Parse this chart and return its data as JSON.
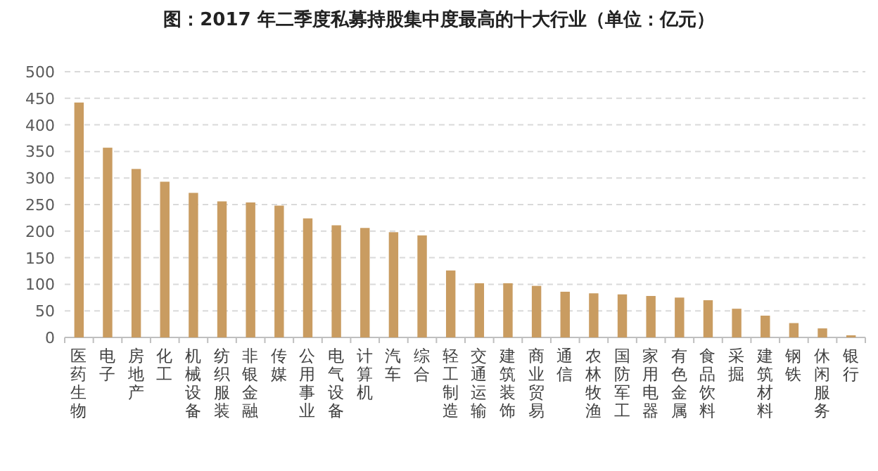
{
  "chart_data": {
    "type": "bar",
    "title": "图：2017 年二季度私募持股集中度最高的十大行业（单位：亿元）",
    "categories": [
      "医药生物",
      "电子",
      "房地产",
      "化工",
      "机械设备",
      "纺织服装",
      "非银金融",
      "传媒",
      "公用事业",
      "电气设备",
      "计算机",
      "汽车",
      "综合",
      "轻工制造",
      "交通运输",
      "建筑装饰",
      "商业贸易",
      "通信",
      "农林牧渔",
      "国防军工",
      "家用电器",
      "有色金属",
      "食品饮料",
      "采掘",
      "建筑材料",
      "钢铁",
      "休闲服务",
      "银行"
    ],
    "values": [
      442,
      357,
      317,
      293,
      272,
      256,
      254,
      248,
      224,
      211,
      206,
      198,
      192,
      126,
      102,
      102,
      97,
      86,
      83,
      81,
      78,
      75,
      70,
      54,
      41,
      27,
      17,
      4
    ],
    "color": "#c99c61",
    "ylim": [
      0,
      500
    ],
    "yticks": [
      0,
      50,
      100,
      150,
      200,
      250,
      300,
      350,
      400,
      450,
      500
    ],
    "grid": "y"
  }
}
